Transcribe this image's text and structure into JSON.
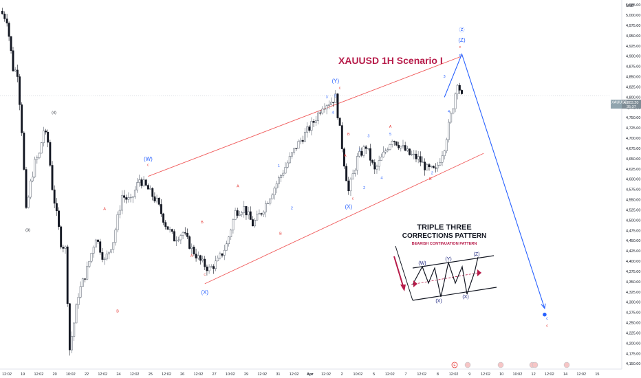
{
  "chart_data": {
    "type": "candlestick",
    "title": "XAUUSD 1H Scenario I",
    "symbol": "XAUUSD",
    "currency": "USD",
    "last_price": "4,803.20",
    "countdown": "35:37",
    "ylim": [
      4137,
      5037
    ],
    "y_ticks": [
      "5,025.00",
      "5,000.00",
      "4,975.00",
      "4,950.00",
      "4,925.00",
      "4,900.00",
      "4,875.00",
      "4,850.00",
      "4,825.00",
      "4,800.00",
      "4,775.00",
      "4,750.00",
      "4,725.00",
      "4,700.00",
      "4,675.00",
      "4,650.00",
      "4,625.00",
      "4,600.00",
      "4,575.00",
      "4,550.00",
      "4,525.00",
      "4,500.00",
      "4,475.00",
      "4,450.00",
      "4,425.00",
      "4,400.00",
      "4,375.00",
      "4,350.00",
      "4,325.00",
      "4,300.00",
      "4,275.00",
      "4,250.00",
      "4,225.00",
      "4,200.00",
      "4,175.00",
      "4,150.00"
    ],
    "x_ticks": [
      "12:02",
      "19",
      "12:02",
      "20",
      "10:02",
      "22",
      "12:02",
      "24",
      "12:02",
      "25",
      "12:02",
      "26",
      "12:02",
      "27",
      "10:02",
      "29",
      "12:02",
      "31",
      "12:02",
      "Apr",
      "12:02",
      "2",
      "10:02",
      "5",
      "12:02",
      "7",
      "12:02",
      "8",
      "12:02",
      "9",
      "12:02",
      "10",
      "10:02",
      "12",
      "12:02",
      "14",
      "12:02",
      "15"
    ],
    "price_path": [
      [
        0,
        5010
      ],
      [
        0.8,
        4990
      ],
      [
        1.5,
        4870
      ],
      [
        2,
        4860
      ],
      [
        2.5,
        4720
      ],
      [
        3,
        4520
      ],
      [
        3.5,
        4590
      ],
      [
        4,
        4640
      ],
      [
        4.5,
        4660
      ],
      [
        5,
        4720
      ],
      [
        5.5,
        4690
      ],
      [
        6,
        4580
      ],
      [
        7,
        4445
      ],
      [
        7.5,
        4430
      ],
      [
        8,
        4185
      ],
      [
        8.5,
        4250
      ],
      [
        9,
        4320
      ],
      [
        10,
        4380
      ],
      [
        11,
        4460
      ],
      [
        12,
        4400
      ],
      [
        13,
        4450
      ],
      [
        14,
        4560
      ],
      [
        15,
        4545
      ],
      [
        16,
        4600
      ],
      [
        17,
        4575
      ],
      [
        18,
        4545
      ],
      [
        19,
        4490
      ],
      [
        20,
        4455
      ],
      [
        21,
        4470
      ],
      [
        22,
        4430
      ],
      [
        23,
        4400
      ],
      [
        24,
        4380
      ],
      [
        25,
        4400
      ],
      [
        26,
        4440
      ],
      [
        27,
        4520
      ],
      [
        28,
        4530
      ],
      [
        29,
        4490
      ],
      [
        30,
        4520
      ],
      [
        31,
        4560
      ],
      [
        32,
        4600
      ],
      [
        33,
        4640
      ],
      [
        34,
        4680
      ],
      [
        35,
        4710
      ],
      [
        36,
        4740
      ],
      [
        37,
        4780
      ],
      [
        38,
        4790
      ],
      [
        38.5,
        4800
      ],
      [
        39,
        4720
      ],
      [
        39.5,
        4640
      ],
      [
        40,
        4570
      ],
      [
        40.5,
        4610
      ],
      [
        41,
        4650
      ],
      [
        42,
        4680
      ],
      [
        42.5,
        4650
      ],
      [
        43,
        4620
      ],
      [
        44,
        4660
      ],
      [
        45,
        4700
      ],
      [
        46,
        4680
      ],
      [
        47,
        4660
      ],
      [
        48,
        4650
      ],
      [
        49,
        4625
      ],
      [
        50,
        4620
      ],
      [
        51,
        4680
      ],
      [
        52,
        4780
      ],
      [
        52.5,
        4840
      ],
      [
        53,
        4800
      ]
    ],
    "channel": {
      "upper": [
        [
          17,
          4607
        ],
        [
          53,
          4900
        ]
      ],
      "lower": [
        [
          23.5,
          4345
        ],
        [
          55.5,
          4663
        ]
      ],
      "line_color": "#f05a5a"
    },
    "projection": {
      "path": [
        [
          51,
          4800
        ],
        [
          53,
          4905
        ],
        [
          62.5,
          4285
        ]
      ],
      "line_color": "#2962ff"
    },
    "wave_labels_primary": [
      {
        "text": "(W)",
        "x": 17,
        "y": 4645
      },
      {
        "text": "(X)",
        "x": 23.5,
        "y": 4320
      },
      {
        "text": "(Y)",
        "x": 38.5,
        "y": 4835
      },
      {
        "text": "(X)",
        "x": 40,
        "y": 4528
      },
      {
        "text": "(Z)",
        "x": 53,
        "y": 4935
      },
      {
        "text": "Ⓩ",
        "x": 53,
        "y": 4960
      }
    ],
    "wave_labels_minor_blue": [
      {
        "text": "3",
        "x": 37.5,
        "y": 4797
      },
      {
        "text": "5",
        "x": 38.5,
        "y": 4800
      },
      {
        "text": "4",
        "x": 38.2,
        "y": 4760
      },
      {
        "text": "1",
        "x": 32,
        "y": 4630
      },
      {
        "text": "2",
        "x": 33.5,
        "y": 4527
      },
      {
        "text": "1",
        "x": 41.3,
        "y": 4668
      },
      {
        "text": "3",
        "x": 42.3,
        "y": 4703
      },
      {
        "text": "2",
        "x": 41.8,
        "y": 4576
      },
      {
        "text": "4",
        "x": 43.8,
        "y": 4600
      },
      {
        "text": "5",
        "x": 44.8,
        "y": 4707
      },
      {
        "text": "3",
        "x": 51,
        "y": 4848
      },
      {
        "text": "5",
        "x": 52.8,
        "y": 4898
      },
      {
        "text": "4",
        "x": 51.5,
        "y": 4762
      },
      {
        "text": "2",
        "x": 49.6,
        "y": 4612
      },
      {
        "text": "c",
        "x": 62.8,
        "y": 4258
      }
    ],
    "wave_labels_minor_red": [
      {
        "text": "A",
        "x": 12,
        "y": 4525
      },
      {
        "text": "B",
        "x": 13.5,
        "y": 4275
      },
      {
        "text": "A",
        "x": 22,
        "y": 4410
      },
      {
        "text": "B",
        "x": 23.2,
        "y": 4492
      },
      {
        "text": "c",
        "x": 23.5,
        "y": 4365
      },
      {
        "text": "A",
        "x": 27.3,
        "y": 4580
      },
      {
        "text": "B",
        "x": 32.2,
        "y": 4465
      },
      {
        "text": "c",
        "x": 17,
        "y": 4632
      },
      {
        "text": "c",
        "x": 39,
        "y": 4820
      },
      {
        "text": "B",
        "x": 40,
        "y": 4707
      },
      {
        "text": "A",
        "x": 39.6,
        "y": 4655
      },
      {
        "text": "c",
        "x": 40.5,
        "y": 4550
      },
      {
        "text": "A",
        "x": 44.8,
        "y": 4725
      },
      {
        "text": "B",
        "x": 49.4,
        "y": 4598
      },
      {
        "text": "c",
        "x": 52.8,
        "y": 4920
      },
      {
        "text": "c",
        "x": 62.8,
        "y": 4240
      }
    ],
    "wave_labels_black": [
      {
        "text": "(4)",
        "x": 6.2,
        "y": 4760
      },
      {
        "text": "(3)",
        "x": 3.2,
        "y": 4473
      }
    ],
    "pattern_inset": {
      "title_line1": "TRIPLE THREE",
      "title_line2": "CORRECTIONS PATTERN",
      "subtitle": "BEARISH CONTINUATION PATTERN",
      "labels": [
        "(W)",
        "(Y)",
        "(Z)",
        "(X)",
        "(X)"
      ]
    },
    "event_icons": [
      "flag-us",
      "flag-us",
      "flag-us",
      "flag-us",
      "flag-us",
      "event-e"
    ]
  }
}
